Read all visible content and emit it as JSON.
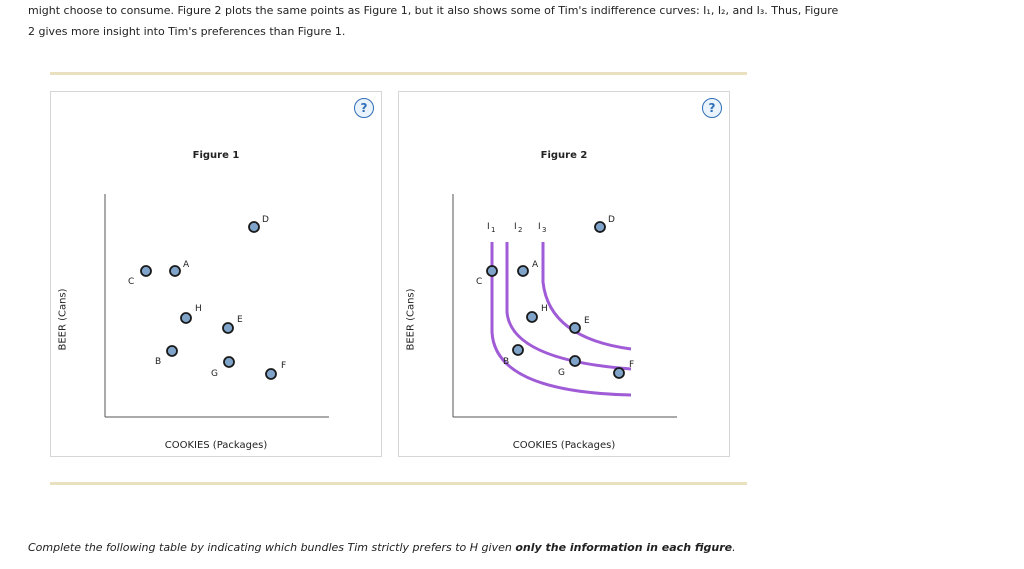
{
  "intro": {
    "line1": "might choose to consume. Figure 2 plots the same points as Figure 1, but it also shows some of Tim's indifference curves: I₁, I₂, and I₃. Thus, Figure",
    "line2": "2 gives more insight into Tim's preferences than Figure 1."
  },
  "figure1": {
    "title": "Figure 1",
    "xlabel": "COOKIES (Packages)",
    "ylabel": "BEER (Cans)",
    "help": "?",
    "points": [
      {
        "label": "C"
      },
      {
        "label": "A"
      },
      {
        "label": "D"
      },
      {
        "label": "H"
      },
      {
        "label": "E"
      },
      {
        "label": "B"
      },
      {
        "label": "G"
      },
      {
        "label": "F"
      }
    ]
  },
  "figure2": {
    "title": "Figure 2",
    "xlabel": "COOKIES (Packages)",
    "ylabel": "BEER (Cans)",
    "help": "?",
    "curves": [
      "I1",
      "I2",
      "I3"
    ],
    "points": [
      {
        "label": "C"
      },
      {
        "label": "A"
      },
      {
        "label": "D"
      },
      {
        "label": "H"
      },
      {
        "label": "E"
      },
      {
        "label": "B"
      },
      {
        "label": "G"
      },
      {
        "label": "F"
      }
    ]
  },
  "instruction": {
    "prefix": "Complete the following table by indicating which bundles Tim strictly prefers to H given ",
    "emphasis": "only the information in each figure",
    "suffix": "."
  },
  "colors": {
    "point_fill": "#7fa3c9",
    "point_stroke": "#1a1a1a",
    "curve": "#a05bd6",
    "axis": "#555555",
    "help_accent": "#2f6fb7",
    "rule": "#e8e0bf"
  }
}
